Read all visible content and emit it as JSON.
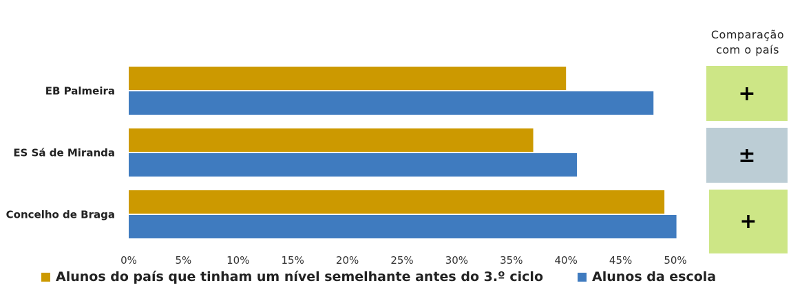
{
  "chart_data": {
    "type": "bar",
    "orientation": "horizontal",
    "categories": [
      "EB Palmeira",
      "ES Sá de Miranda",
      "Concelho de Braga"
    ],
    "series": [
      {
        "name": "Alunos do país que tinham um nível semelhante antes do 3.º ciclo",
        "color": "#CC9900",
        "values": [
          40,
          37,
          49
        ]
      },
      {
        "name": "Alunos da escola",
        "color": "#3F7BBF",
        "values": [
          48,
          41,
          50.1
        ]
      }
    ],
    "xlim": [
      0,
      50
    ],
    "xticks": [
      "0%",
      "5%",
      "10%",
      "15%",
      "20%",
      "25%",
      "30%",
      "35%",
      "40%",
      "45%",
      "50%"
    ],
    "grid": false,
    "legend_position": "bottom"
  },
  "comparison": {
    "header_line1": "Comparação",
    "header_line2": "com o país",
    "items": [
      {
        "symbol": "+",
        "color": "#CDE686"
      },
      {
        "symbol": "±",
        "color": "#BCCDD5"
      },
      {
        "symbol": "+",
        "color": "#CDE686"
      }
    ]
  }
}
